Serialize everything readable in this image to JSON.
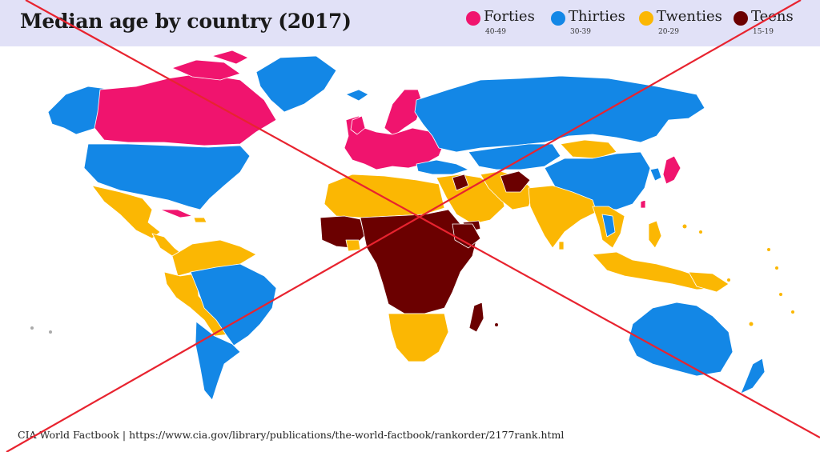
{
  "title": "Median age by country (2017)",
  "legend": [
    {
      "label": "Forties",
      "range": "40-49",
      "color": "#f0146e"
    },
    {
      "label": "Thirties",
      "range": "30-39",
      "color": "#1387e6"
    },
    {
      "label": "Twenties",
      "range": "20-29",
      "color": "#fbb703"
    },
    {
      "label": "Teens",
      "range": "15-19",
      "color": "#6b0000"
    }
  ],
  "source": "CIA World Factbook | https://www.cia.gov/library/publications/the-world-factbook/rankorder/2177rank.html",
  "colors": {
    "forties": "#f0146e",
    "thirties": "#1387e6",
    "twenties": "#fbb703",
    "teens": "#6b0000",
    "header_bg": "#e1e1f7",
    "cross": "#e8232f"
  }
}
